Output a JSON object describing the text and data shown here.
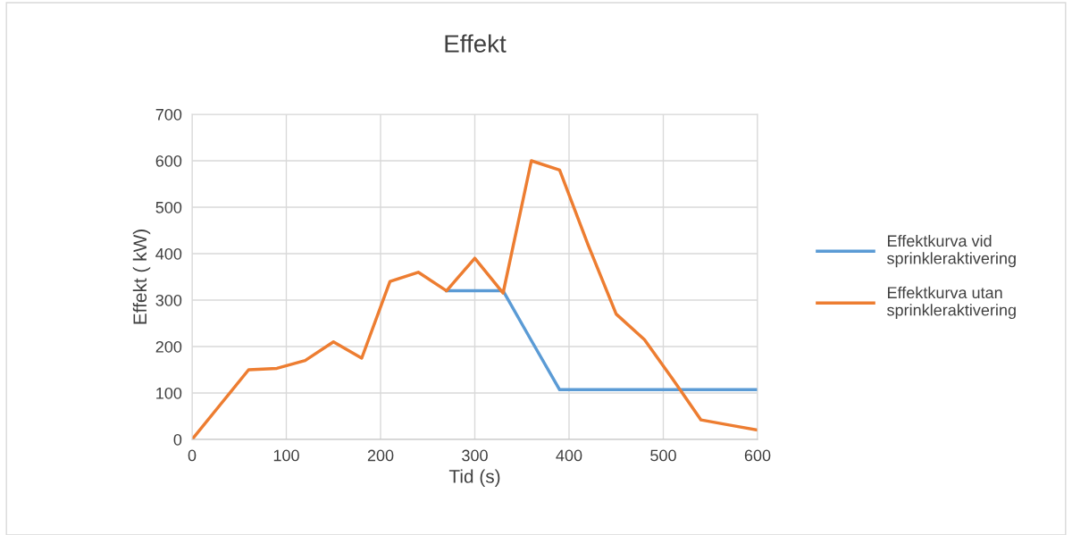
{
  "chart_data": {
    "type": "line",
    "title": "Effekt",
    "xlabel": "Tid (s)",
    "ylabel": "Effekt ( kW)",
    "x": [
      0,
      30,
      60,
      90,
      120,
      150,
      180,
      210,
      240,
      270,
      300,
      330,
      360,
      390,
      420,
      450,
      480,
      510,
      540,
      570,
      600
    ],
    "series": [
      {
        "name": "Effektkurva vid sprinkleraktivering",
        "color": "#5b9bd5",
        "values": [
          null,
          null,
          null,
          null,
          null,
          null,
          null,
          null,
          null,
          320,
          320,
          320,
          213,
          107,
          107,
          107,
          107,
          107,
          107,
          107,
          107
        ]
      },
      {
        "name": "Effektkurva utan sprinkleraktivering",
        "color": "#ed7d31",
        "values": [
          0,
          75,
          150,
          153,
          170,
          210,
          175,
          340,
          360,
          320,
          390,
          315,
          600,
          580,
          420,
          270,
          215,
          130,
          42,
          31,
          20
        ]
      }
    ],
    "xlim": [
      0,
      600
    ],
    "xticks": [
      0,
      100,
      200,
      300,
      400,
      500,
      600
    ],
    "ylim": [
      0,
      700
    ],
    "yticks": [
      0,
      100,
      200,
      300,
      400,
      500,
      600,
      700
    ],
    "grid": true,
    "legend": "right",
    "marker": "none",
    "line_style": "solid"
  }
}
